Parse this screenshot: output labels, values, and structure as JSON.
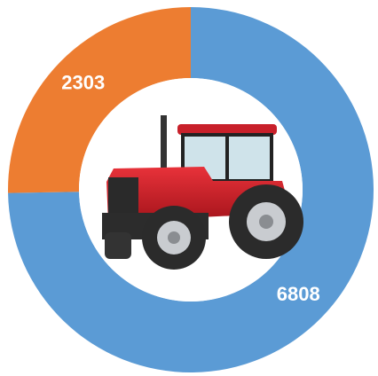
{
  "chart_data": {
    "type": "donut",
    "values": [
      6808,
      2303
    ],
    "colors": [
      "#5b9bd5",
      "#ed7d31"
    ]
  }
}
